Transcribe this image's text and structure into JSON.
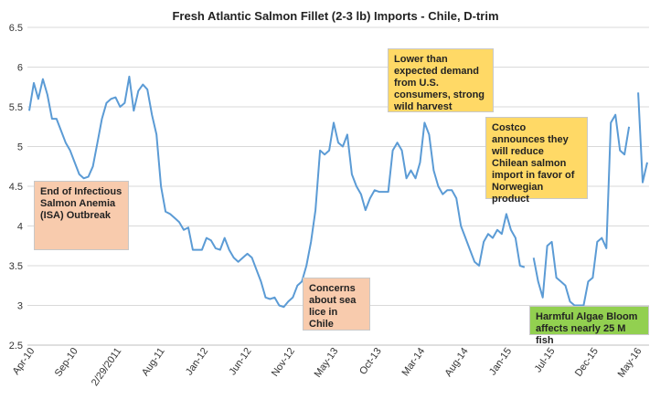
{
  "chart_data": {
    "type": "line",
    "title": "Fresh Atlantic Salmon Fillet (2-3 lb) Imports - Chile, D-trim",
    "xlabel": "",
    "ylabel": "",
    "ylim": [
      2.5,
      6.5
    ],
    "yticks": [
      "2.5",
      "3",
      "3.5",
      "4",
      "4.5",
      "5",
      "5.5",
      "6",
      "6.5"
    ],
    "xticks": [
      "Apr-10",
      "Sep-10",
      "2/29/2011",
      "Aug-11",
      "Jan-12",
      "Jun-12",
      "Nov-12",
      "May-13",
      "Oct-13",
      "Mar-14",
      "Aug-14",
      "Jan-15",
      "Jul-15",
      "Dec-15",
      "May-16"
    ],
    "grid": true,
    "legend": "none",
    "line_color": "#5b9bd5",
    "series": [
      {
        "values": [
          5.45,
          5.8,
          5.6,
          5.85,
          5.65,
          5.35,
          5.35,
          5.2,
          5.05,
          4.95,
          4.8,
          4.65,
          4.6,
          4.62,
          4.75,
          5.05,
          5.35,
          5.55,
          5.6,
          5.62,
          5.5,
          5.55,
          5.88,
          5.45,
          5.7,
          5.78,
          5.72,
          5.4,
          5.15,
          4.5,
          4.18,
          4.15,
          4.1,
          4.05,
          3.95,
          3.98,
          3.7,
          3.7,
          3.7,
          3.85,
          3.82,
          3.72,
          3.7,
          3.85,
          3.7,
          3.6,
          3.55,
          3.6,
          3.65,
          3.6,
          3.45,
          3.3,
          3.1,
          3.08,
          3.1,
          3.0,
          2.98,
          3.05,
          3.1,
          3.25,
          3.3,
          3.5,
          3.8,
          4.2,
          4.95,
          4.9,
          4.95,
          5.3,
          5.05,
          5.0,
          5.15,
          4.65,
          4.5,
          4.4,
          4.2,
          4.35,
          4.45,
          4.43,
          4.43,
          4.43,
          4.95,
          5.05,
          4.95,
          4.6,
          4.7,
          4.6,
          4.8,
          5.3,
          5.15,
          4.7,
          4.5,
          4.4,
          4.45,
          4.45,
          4.35,
          4.0,
          3.85,
          3.7,
          3.55,
          3.5,
          3.8,
          3.9,
          3.85,
          3.95,
          3.9,
          4.15,
          3.95,
          3.85,
          3.5,
          3.48,
          null,
          3.6,
          3.3,
          3.1,
          3.75,
          3.8,
          3.35,
          3.3,
          3.25,
          3.05,
          3.0,
          3.0,
          3.0,
          3.3,
          3.35,
          3.8,
          3.85,
          3.72,
          5.3,
          5.4,
          4.95,
          4.9,
          5.25,
          null,
          5.68,
          4.55,
          4.8
        ]
      }
    ],
    "annotations": [
      {
        "text": "End of Infectious Salmon Anemia (ISA) Outbreak",
        "color": "#f8cbad"
      },
      {
        "text": "Concerns about sea lice in Chile",
        "color": "#f8cbad"
      },
      {
        "text": "Lower than expected demand from U.S. consumers, strong wild harvest",
        "color": "#ffd966"
      },
      {
        "text": "Costco announces they will reduce Chilean salmon import in favor of Norwegian product",
        "color": "#ffd966"
      },
      {
        "text": "Harmful Algae Bloom affects nearly 25 M fish",
        "color": "#92d050"
      }
    ]
  }
}
